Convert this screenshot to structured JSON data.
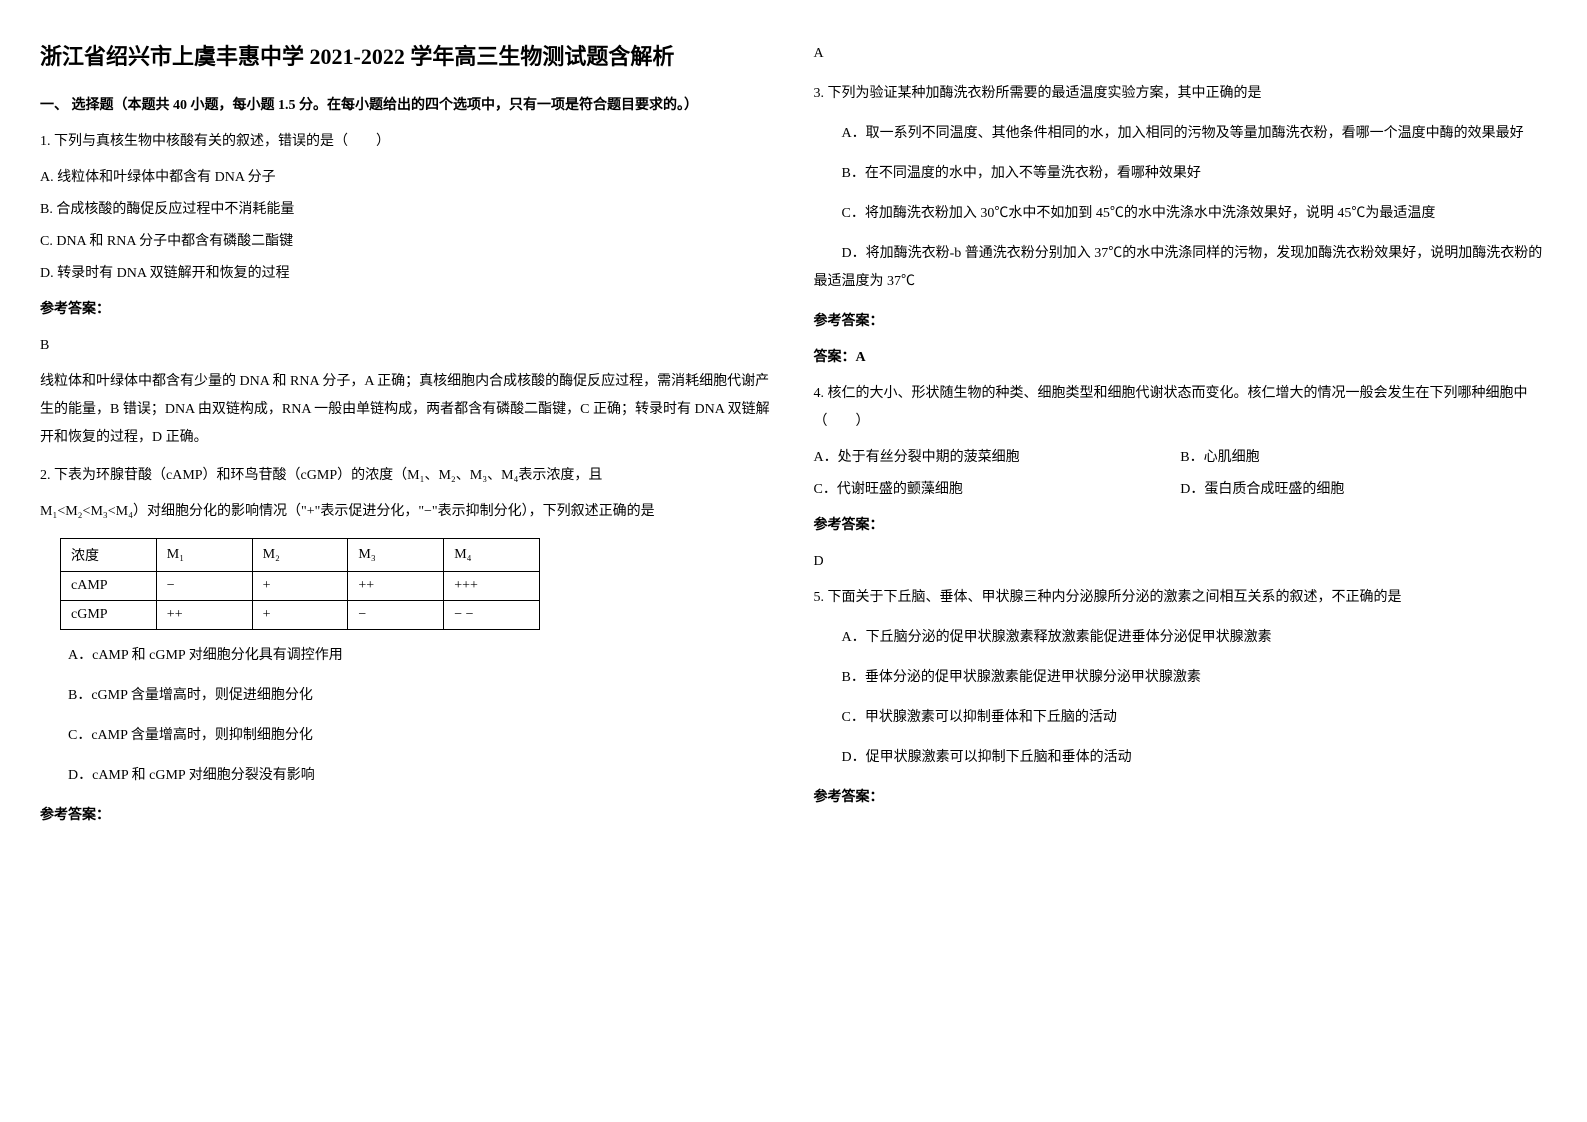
{
  "title": "浙江省绍兴市上虞丰惠中学 2021-2022 学年高三生物测试题含解析",
  "section_heading": "一、 选择题（本题共 40 小题，每小题 1.5 分。在每小题给出的四个选项中，只有一项是符合题目要求的。）",
  "q1": {
    "stem": "1. 下列与真核生物中核酸有关的叙述，错误的是（　　）",
    "options": {
      "a": "A.  线粒体和叶绿体中都含有 DNA 分子",
      "b": "B.  合成核酸的酶促反应过程中不消耗能量",
      "c": "C.  DNA 和 RNA 分子中都含有磷酸二酯键",
      "d": "D.  转录时有 DNA 双链解开和恢复的过程"
    },
    "answer_label": "参考答案：",
    "answer": "B",
    "explanation": "线粒体和叶绿体中都含有少量的 DNA 和 RNA 分子，A 正确；真核细胞内合成核酸的酶促反应过程，需消耗细胞代谢产生的能量，B 错误；DNA 由双链构成，RNA 一般由单链构成，两者都含有磷酸二酯键，C 正确；转录时有 DNA 双链解开和恢复的过程，D 正确。"
  },
  "q2": {
    "stem_line1": "2. 下表为环腺苷酸（cAMP）和环鸟苷酸（cGMP）的浓度（M₁、M₂、M₃、M₄表示浓度，且",
    "stem_line2": "M₁<M₂<M₃<M₄）对细胞分化的影响情况（\"+\"表示促进分化，\"−\"表示抑制分化），下列叙述正确的是",
    "table": {
      "headers": [
        "浓度",
        "M₁",
        "M₂",
        "M₃",
        "M₄"
      ],
      "rows": [
        [
          "cAMP",
          "−",
          "+",
          "++",
          "+++"
        ],
        [
          "cGMP",
          "++",
          "+",
          "−",
          "− −"
        ]
      ]
    },
    "options": {
      "a": "A．cAMP 和 cGMP 对细胞分化具有调控作用",
      "b": "B．cGMP 含量增高时，则促进细胞分化",
      "c": "C．cAMP 含量增高时，则抑制细胞分化",
      "d": "D．cAMP 和 cGMP 对细胞分裂没有影响"
    },
    "answer_label": "参考答案：",
    "answer": "A"
  },
  "q3": {
    "stem": "3. 下列为验证某种加酶洗衣粉所需要的最适温度实验方案，其中正确的是",
    "options": {
      "a": "A．取一系列不同温度、其他条件相同的水，加入相同的污物及等量加酶洗衣粉，看哪一个温度中酶的效果最好",
      "b": "B．在不同温度的水中，加入不等量洗衣粉，看哪种效果好",
      "c": "C．将加酶洗衣粉加入 30℃水中不如加到 45℃的水中洗涤水中洗涤效果好，说明 45℃为最适温度",
      "d": "D．将加酶洗衣粉-b 普通洗衣粉分别加入 37℃的水中洗涤同样的污物，发现加酶洗衣粉效果好，说明加酶洗衣粉的最适温度为 37℃"
    },
    "answer_label": "参考答案：",
    "answer": "答案：A"
  },
  "q4": {
    "stem": "4. 核仁的大小、形状随生物的种类、细胞类型和细胞代谢状态而变化。核仁增大的情况一般会发生在下列哪种细胞中（　　）",
    "options": {
      "a": "A．处于有丝分裂中期的菠菜细胞",
      "b": "B．心肌细胞",
      "c": "C．代谢旺盛的颤藻细胞",
      "d": "D．蛋白质合成旺盛的细胞"
    },
    "answer_label": "参考答案：",
    "answer": "D"
  },
  "q5": {
    "stem": "5. 下面关于下丘脑、垂体、甲状腺三种内分泌腺所分泌的激素之间相互关系的叙述，不正确的是",
    "options": {
      "a": "A．下丘脑分泌的促甲状腺激素释放激素能促进垂体分泌促甲状腺激素",
      "b": "B．垂体分泌的促甲状腺激素能促进甲状腺分泌甲状腺激素",
      "c": "C．甲状腺激素可以抑制垂体和下丘脑的活动",
      "d": "D．促甲状腺激素可以抑制下丘脑和垂体的活动"
    },
    "answer_label": "参考答案："
  }
}
